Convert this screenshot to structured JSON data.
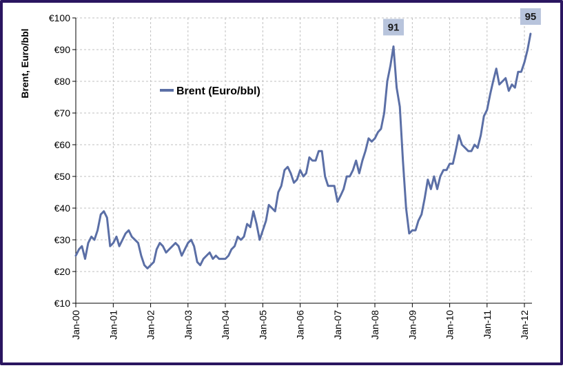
{
  "chart_data": {
    "type": "line",
    "title": "",
    "ylabel": "Brent, Euro/bbl",
    "xlabel": "",
    "ylim": [
      10,
      100
    ],
    "xlim": [
      "2000-01-01",
      "2012-03-15"
    ],
    "y_ticks": [
      10,
      20,
      30,
      40,
      50,
      60,
      70,
      80,
      90,
      100
    ],
    "y_tick_labels": [
      "€10",
      "€20",
      "€30",
      "€40",
      "€50",
      "€60",
      "€70",
      "€80",
      "€90",
      "€100"
    ],
    "x_tick_labels": [
      "Jan-00",
      "Jan-01",
      "Jan-02",
      "Jan-03",
      "Jan-04",
      "Jan-05",
      "Jan-06",
      "Jan-07",
      "Jan-08",
      "Jan-09",
      "Jan-10",
      "Jan-11",
      "Jan-12"
    ],
    "x_tick_dates": [
      "2000-01-01",
      "2001-01-01",
      "2002-01-01",
      "2003-01-01",
      "2004-01-01",
      "2005-01-01",
      "2006-01-01",
      "2007-01-01",
      "2008-01-01",
      "2009-01-01",
      "2010-01-01",
      "2011-01-01",
      "2012-01-01"
    ],
    "grid": true,
    "legend": "center-left",
    "colors": {
      "series": "#5b6fa6",
      "grid": "#bfbfbf",
      "axis": "#000000",
      "callout_bg": "#b8c4dc",
      "frame": "#2b1660"
    },
    "series": [
      {
        "name": "Brent (Euro/bbl)",
        "points": [
          [
            "2000-01-01",
            25
          ],
          [
            "2000-02-01",
            27
          ],
          [
            "2000-03-01",
            28
          ],
          [
            "2000-04-01",
            24
          ],
          [
            "2000-05-01",
            29
          ],
          [
            "2000-06-01",
            31
          ],
          [
            "2000-07-01",
            30
          ],
          [
            "2000-08-01",
            33
          ],
          [
            "2000-09-01",
            38
          ],
          [
            "2000-10-01",
            39
          ],
          [
            "2000-11-01",
            37
          ],
          [
            "2000-12-01",
            28
          ],
          [
            "2001-01-01",
            29
          ],
          [
            "2001-02-01",
            31
          ],
          [
            "2001-03-01",
            28
          ],
          [
            "2001-04-01",
            30
          ],
          [
            "2001-05-01",
            32
          ],
          [
            "2001-06-01",
            33
          ],
          [
            "2001-07-01",
            31
          ],
          [
            "2001-08-01",
            30
          ],
          [
            "2001-09-01",
            29
          ],
          [
            "2001-10-01",
            25
          ],
          [
            "2001-11-01",
            22
          ],
          [
            "2001-12-01",
            21
          ],
          [
            "2002-01-01",
            22
          ],
          [
            "2002-02-01",
            23
          ],
          [
            "2002-03-01",
            27
          ],
          [
            "2002-04-01",
            29
          ],
          [
            "2002-05-01",
            28
          ],
          [
            "2002-06-01",
            26
          ],
          [
            "2002-07-01",
            27
          ],
          [
            "2002-08-01",
            28
          ],
          [
            "2002-09-01",
            29
          ],
          [
            "2002-10-01",
            28
          ],
          [
            "2002-11-01",
            25
          ],
          [
            "2002-12-01",
            27
          ],
          [
            "2003-01-01",
            29
          ],
          [
            "2003-02-01",
            30
          ],
          [
            "2003-03-01",
            28
          ],
          [
            "2003-04-01",
            23
          ],
          [
            "2003-05-01",
            22
          ],
          [
            "2003-06-01",
            24
          ],
          [
            "2003-07-01",
            25
          ],
          [
            "2003-08-01",
            26
          ],
          [
            "2003-09-01",
            24
          ],
          [
            "2003-10-01",
            25
          ],
          [
            "2003-11-01",
            24
          ],
          [
            "2003-12-01",
            24
          ],
          [
            "2004-01-01",
            24
          ],
          [
            "2004-02-01",
            25
          ],
          [
            "2004-03-01",
            27
          ],
          [
            "2004-04-01",
            28
          ],
          [
            "2004-05-01",
            31
          ],
          [
            "2004-06-01",
            30
          ],
          [
            "2004-07-01",
            31
          ],
          [
            "2004-08-01",
            35
          ],
          [
            "2004-09-01",
            34
          ],
          [
            "2004-10-01",
            39
          ],
          [
            "2004-11-01",
            35
          ],
          [
            "2004-12-01",
            30
          ],
          [
            "2005-01-01",
            33
          ],
          [
            "2005-02-01",
            36
          ],
          [
            "2005-03-01",
            41
          ],
          [
            "2005-04-01",
            40
          ],
          [
            "2005-05-01",
            39
          ],
          [
            "2005-06-01",
            45
          ],
          [
            "2005-07-01",
            47
          ],
          [
            "2005-08-01",
            52
          ],
          [
            "2005-09-01",
            53
          ],
          [
            "2005-10-01",
            51
          ],
          [
            "2005-11-01",
            48
          ],
          [
            "2005-12-01",
            49
          ],
          [
            "2006-01-01",
            52
          ],
          [
            "2006-02-01",
            50
          ],
          [
            "2006-03-01",
            51
          ],
          [
            "2006-04-01",
            56
          ],
          [
            "2006-05-01",
            55
          ],
          [
            "2006-06-01",
            55
          ],
          [
            "2006-07-01",
            58
          ],
          [
            "2006-08-01",
            58
          ],
          [
            "2006-09-01",
            50
          ],
          [
            "2006-10-01",
            47
          ],
          [
            "2006-11-01",
            47
          ],
          [
            "2006-12-01",
            47
          ],
          [
            "2007-01-01",
            42
          ],
          [
            "2007-02-01",
            44
          ],
          [
            "2007-03-01",
            46
          ],
          [
            "2007-04-01",
            50
          ],
          [
            "2007-05-01",
            50
          ],
          [
            "2007-06-01",
            52
          ],
          [
            "2007-07-01",
            55
          ],
          [
            "2007-08-01",
            51
          ],
          [
            "2007-09-01",
            55
          ],
          [
            "2007-10-01",
            58
          ],
          [
            "2007-11-01",
            62
          ],
          [
            "2007-12-01",
            61
          ],
          [
            "2008-01-01",
            62
          ],
          [
            "2008-02-01",
            64
          ],
          [
            "2008-03-01",
            65
          ],
          [
            "2008-04-01",
            70
          ],
          [
            "2008-05-01",
            80
          ],
          [
            "2008-06-01",
            85
          ],
          [
            "2008-07-01",
            91
          ],
          [
            "2008-08-01",
            78
          ],
          [
            "2008-09-01",
            72
          ],
          [
            "2008-10-01",
            55
          ],
          [
            "2008-11-01",
            40
          ],
          [
            "2008-12-01",
            32
          ],
          [
            "2009-01-01",
            33
          ],
          [
            "2009-02-01",
            33
          ],
          [
            "2009-03-01",
            36
          ],
          [
            "2009-04-01",
            38
          ],
          [
            "2009-05-01",
            43
          ],
          [
            "2009-06-01",
            49
          ],
          [
            "2009-07-01",
            46
          ],
          [
            "2009-08-01",
            50
          ],
          [
            "2009-09-01",
            46
          ],
          [
            "2009-10-01",
            50
          ],
          [
            "2009-11-01",
            52
          ],
          [
            "2009-12-01",
            52
          ],
          [
            "2010-01-01",
            54
          ],
          [
            "2010-02-01",
            54
          ],
          [
            "2010-03-01",
            58
          ],
          [
            "2010-04-01",
            63
          ],
          [
            "2010-05-01",
            60
          ],
          [
            "2010-06-01",
            59
          ],
          [
            "2010-07-01",
            58
          ],
          [
            "2010-08-01",
            58
          ],
          [
            "2010-09-01",
            60
          ],
          [
            "2010-10-01",
            59
          ],
          [
            "2010-11-01",
            63
          ],
          [
            "2010-12-01",
            69
          ],
          [
            "2011-01-01",
            71
          ],
          [
            "2011-02-01",
            76
          ],
          [
            "2011-03-01",
            80
          ],
          [
            "2011-04-01",
            84
          ],
          [
            "2011-05-01",
            79
          ],
          [
            "2011-06-01",
            80
          ],
          [
            "2011-07-01",
            81
          ],
          [
            "2011-08-01",
            77
          ],
          [
            "2011-09-01",
            79
          ],
          [
            "2011-10-01",
            78
          ],
          [
            "2011-11-01",
            83
          ],
          [
            "2011-12-01",
            83
          ],
          [
            "2012-01-01",
            86
          ],
          [
            "2012-02-01",
            90
          ],
          [
            "2012-03-01",
            95
          ]
        ]
      }
    ],
    "annotations": [
      {
        "label": "91",
        "x": "2008-07-01",
        "y": 91
      },
      {
        "label": "95",
        "x": "2012-03-01",
        "y": 95
      }
    ]
  }
}
